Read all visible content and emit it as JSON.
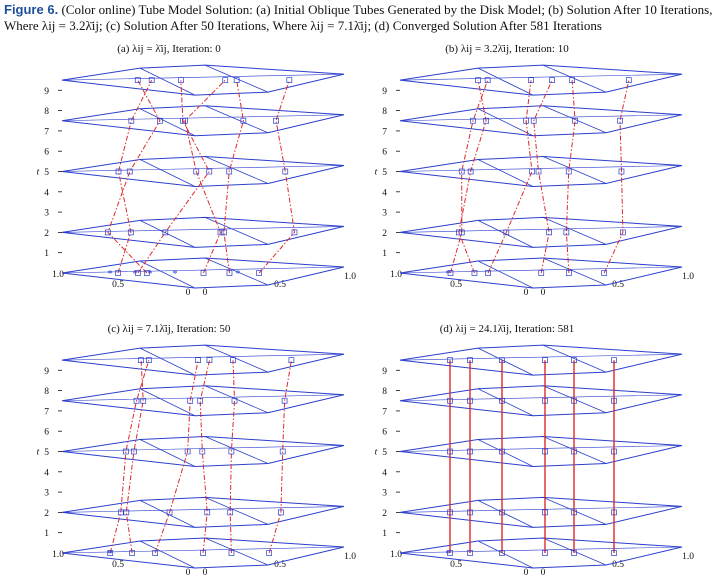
{
  "caption": {
    "label": "Figure 6.",
    "text": "(Color online) Tube Model Solution: (a) Initial Oblique Tubes Generated by the Disk Model; (b) Solution After 10 Iterations, Where λij = 3.2λ̄ij; (c) Solution After 50 Iterations, Where λij = 7.1λ̄ij; (d) Converged Solution After 581 Iterations"
  },
  "colors": {
    "plane": "#2b3fcc",
    "tube": "#dd2a2a",
    "marker": "#2b3fcc",
    "text": "#111111"
  },
  "axis": {
    "t_label": "t",
    "t_ticks": [
      "1",
      "2",
      "3",
      "4",
      "5",
      "6",
      "7",
      "8",
      "9"
    ],
    "x_ticks": [
      "1.0",
      "0.5",
      "0"
    ],
    "y_ticks": [
      "0",
      "0.5",
      "1.0"
    ]
  },
  "layers_t": [
    0,
    2,
    5,
    7.5,
    9.5
  ],
  "panels": [
    {
      "id": "a",
      "title": "(a) λij = λ̄ij, Iteration: 0",
      "iteration": 0,
      "converged": false,
      "wiggle": 1.0
    },
    {
      "id": "b",
      "title": "(b) λij = 3.2λ̄ij, Iteration: 10",
      "iteration": 10,
      "converged": false,
      "wiggle": 0.45
    },
    {
      "id": "c",
      "title": "(c) λij = 7.1λ̄ij, Iteration: 50",
      "iteration": 50,
      "converged": false,
      "wiggle": 0.22
    },
    {
      "id": "d",
      "title": "(d) λij = 24.1λ̄ij, Iteration: 581",
      "iteration": 581,
      "converged": true,
      "wiggle": 0.0
    }
  ]
}
